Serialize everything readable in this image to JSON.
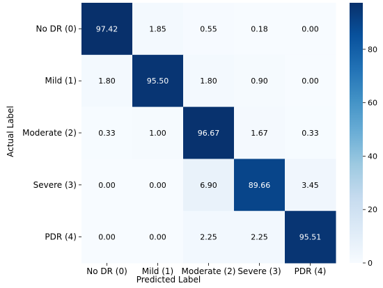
{
  "chart_data": {
    "type": "heatmap",
    "xlabel": "Predicted Label",
    "ylabel": "Actual Label",
    "x_categories": [
      "No DR (0)",
      "Mild (1)",
      "Moderate (2)",
      "Severe (3)",
      "PDR (4)"
    ],
    "y_categories": [
      "No DR (0)",
      "Mild (1)",
      "Moderate (2)",
      "Severe (3)",
      "PDR (4)"
    ],
    "values": [
      [
        97.42,
        1.85,
        0.55,
        0.18,
        0.0
      ],
      [
        1.8,
        95.5,
        1.8,
        0.9,
        0.0
      ],
      [
        0.33,
        1.0,
        96.67,
        1.67,
        0.33
      ],
      [
        0.0,
        0.0,
        6.9,
        89.66,
        3.45
      ],
      [
        0.0,
        0.0,
        2.25,
        2.25,
        95.51
      ]
    ],
    "colormap": "Blues",
    "color_range": [
      0,
      97.42
    ],
    "colorbar_ticks": [
      0,
      20,
      40,
      60,
      80
    ]
  }
}
